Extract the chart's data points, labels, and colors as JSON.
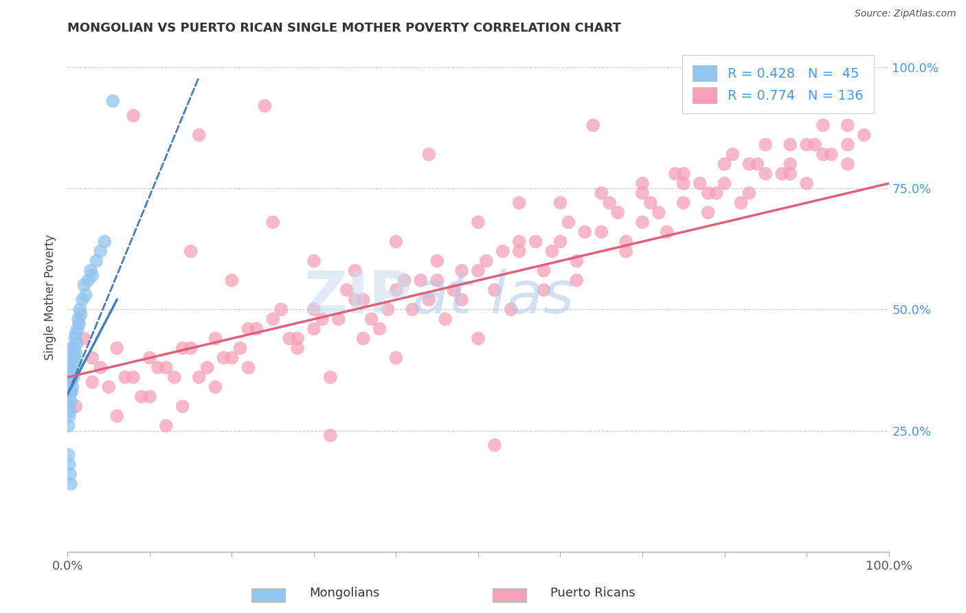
{
  "title": "MONGOLIAN VS PUERTO RICAN SINGLE MOTHER POVERTY CORRELATION CHART",
  "source": "Source: ZipAtlas.com",
  "ylabel": "Single Mother Poverty",
  "xlim": [
    0.0,
    1.0
  ],
  "ylim": [
    0.0,
    1.05
  ],
  "legend_mongolian": "R = 0.428   N =  45",
  "legend_puerto_rican": "R = 0.774   N = 136",
  "mongolian_color": "#92C5F0",
  "mongolian_line_color": "#4080C0",
  "puerto_rican_color": "#F5A0B8",
  "puerto_rican_line_color": "#E0607A",
  "background_color": "#FFFFFF",
  "mongolian_scatter_x": [
    0.001,
    0.001,
    0.001,
    0.002,
    0.002,
    0.002,
    0.003,
    0.003,
    0.003,
    0.004,
    0.004,
    0.004,
    0.005,
    0.005,
    0.005,
    0.006,
    0.006,
    0.007,
    0.007,
    0.008,
    0.008,
    0.009,
    0.009,
    0.01,
    0.01,
    0.011,
    0.012,
    0.013,
    0.014,
    0.015,
    0.016,
    0.018,
    0.02,
    0.022,
    0.025,
    0.028,
    0.03,
    0.035,
    0.04,
    0.045,
    0.001,
    0.002,
    0.003,
    0.004,
    0.055
  ],
  "mongolian_scatter_y": [
    0.34,
    0.3,
    0.26,
    0.38,
    0.32,
    0.28,
    0.36,
    0.33,
    0.29,
    0.4,
    0.35,
    0.31,
    0.42,
    0.37,
    0.33,
    0.38,
    0.34,
    0.4,
    0.36,
    0.42,
    0.38,
    0.44,
    0.4,
    0.45,
    0.41,
    0.43,
    0.46,
    0.48,
    0.47,
    0.5,
    0.49,
    0.52,
    0.55,
    0.53,
    0.56,
    0.58,
    0.57,
    0.6,
    0.62,
    0.64,
    0.2,
    0.18,
    0.16,
    0.14,
    0.93
  ],
  "mongolian_line_x0": 0.0,
  "mongolian_line_x1": 0.16,
  "mongolian_line_y0": 0.325,
  "mongolian_line_y1": 0.98,
  "puerto_rican_line_x0": 0.0,
  "puerto_rican_line_x1": 1.0,
  "puerto_rican_line_y0": 0.36,
  "puerto_rican_line_y1": 0.76,
  "puerto_rican_scatter_x": [
    0.02,
    0.04,
    0.06,
    0.08,
    0.1,
    0.12,
    0.14,
    0.16,
    0.18,
    0.2,
    0.22,
    0.25,
    0.28,
    0.3,
    0.33,
    0.36,
    0.38,
    0.4,
    0.42,
    0.45,
    0.48,
    0.5,
    0.52,
    0.55,
    0.58,
    0.6,
    0.62,
    0.65,
    0.68,
    0.7,
    0.72,
    0.75,
    0.78,
    0.8,
    0.82,
    0.85,
    0.88,
    0.9,
    0.92,
    0.95,
    0.03,
    0.07,
    0.11,
    0.15,
    0.19,
    0.23,
    0.27,
    0.31,
    0.35,
    0.39,
    0.43,
    0.47,
    0.51,
    0.55,
    0.59,
    0.63,
    0.67,
    0.71,
    0.75,
    0.79,
    0.83,
    0.87,
    0.91,
    0.95,
    0.05,
    0.09,
    0.13,
    0.17,
    0.21,
    0.26,
    0.3,
    0.34,
    0.37,
    0.41,
    0.44,
    0.48,
    0.53,
    0.57,
    0.61,
    0.66,
    0.7,
    0.74,
    0.77,
    0.81,
    0.84,
    0.88,
    0.92,
    0.97,
    0.01,
    0.03,
    0.06,
    0.1,
    0.14,
    0.18,
    0.22,
    0.28,
    0.32,
    0.36,
    0.4,
    0.46,
    0.5,
    0.54,
    0.58,
    0.62,
    0.68,
    0.73,
    0.78,
    0.83,
    0.88,
    0.93,
    0.15,
    0.25,
    0.35,
    0.45,
    0.55,
    0.65,
    0.75,
    0.85,
    0.95,
    0.2,
    0.3,
    0.4,
    0.5,
    0.6,
    0.7,
    0.8,
    0.9,
    0.08,
    0.16,
    0.24,
    0.44,
    0.64,
    0.84,
    0.12,
    0.32,
    0.52
  ],
  "puerto_rican_scatter_y": [
    0.44,
    0.38,
    0.42,
    0.36,
    0.4,
    0.38,
    0.42,
    0.36,
    0.44,
    0.4,
    0.46,
    0.48,
    0.44,
    0.5,
    0.48,
    0.52,
    0.46,
    0.54,
    0.5,
    0.56,
    0.52,
    0.58,
    0.54,
    0.62,
    0.58,
    0.64,
    0.6,
    0.66,
    0.64,
    0.68,
    0.7,
    0.72,
    0.74,
    0.76,
    0.72,
    0.78,
    0.8,
    0.76,
    0.82,
    0.84,
    0.4,
    0.36,
    0.38,
    0.42,
    0.4,
    0.46,
    0.44,
    0.48,
    0.52,
    0.5,
    0.56,
    0.54,
    0.6,
    0.64,
    0.62,
    0.66,
    0.7,
    0.72,
    0.76,
    0.74,
    0.8,
    0.78,
    0.84,
    0.8,
    0.34,
    0.32,
    0.36,
    0.38,
    0.42,
    0.5,
    0.46,
    0.54,
    0.48,
    0.56,
    0.52,
    0.58,
    0.62,
    0.64,
    0.68,
    0.72,
    0.74,
    0.78,
    0.76,
    0.82,
    0.8,
    0.84,
    0.88,
    0.86,
    0.3,
    0.35,
    0.28,
    0.32,
    0.3,
    0.34,
    0.38,
    0.42,
    0.36,
    0.44,
    0.4,
    0.48,
    0.44,
    0.5,
    0.54,
    0.56,
    0.62,
    0.66,
    0.7,
    0.74,
    0.78,
    0.82,
    0.62,
    0.68,
    0.58,
    0.6,
    0.72,
    0.74,
    0.78,
    0.84,
    0.88,
    0.56,
    0.6,
    0.64,
    0.68,
    0.72,
    0.76,
    0.8,
    0.84,
    0.9,
    0.86,
    0.92,
    0.82,
    0.88,
    0.92,
    0.26,
    0.24,
    0.22
  ]
}
